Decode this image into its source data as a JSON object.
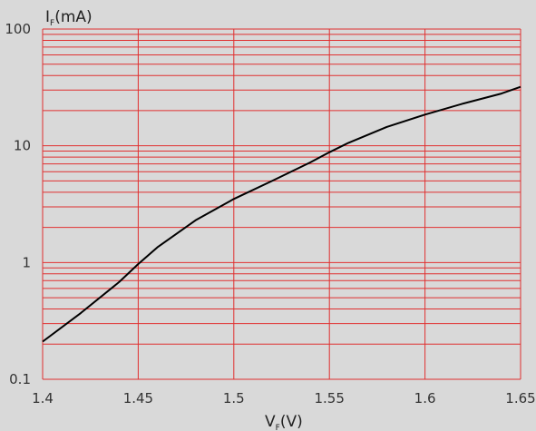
{
  "chart_data": {
    "type": "line",
    "title": "",
    "xlabel": {
      "main": "V",
      "sub": "F",
      "unit": "(V)"
    },
    "ylabel": {
      "main": "I",
      "sub": "F",
      "unit": "(mA)"
    },
    "x_ticks": [
      "1.4",
      "1.45",
      "1.5",
      "1.55",
      "1.6",
      "1.65"
    ],
    "y_ticks": [
      "0.1",
      "1",
      "10",
      "100"
    ],
    "xlim": [
      1.4,
      1.65
    ],
    "ylim": [
      0.1,
      100
    ],
    "yscale": "log",
    "grid": true,
    "series": [
      {
        "x": [
          1.4,
          1.42,
          1.44,
          1.45,
          1.46,
          1.48,
          1.5,
          1.52,
          1.54,
          1.55,
          1.56,
          1.58,
          1.6,
          1.62,
          1.64,
          1.65
        ],
        "y": [
          0.21,
          0.37,
          0.68,
          0.97,
          1.35,
          2.3,
          3.5,
          5.0,
          7.2,
          8.8,
          10.6,
          14.5,
          18.5,
          23.0,
          28.0,
          32.0
        ]
      }
    ],
    "colors": {
      "background": "#d9d9d9",
      "grid": "#e03030",
      "line": "#000000"
    }
  }
}
